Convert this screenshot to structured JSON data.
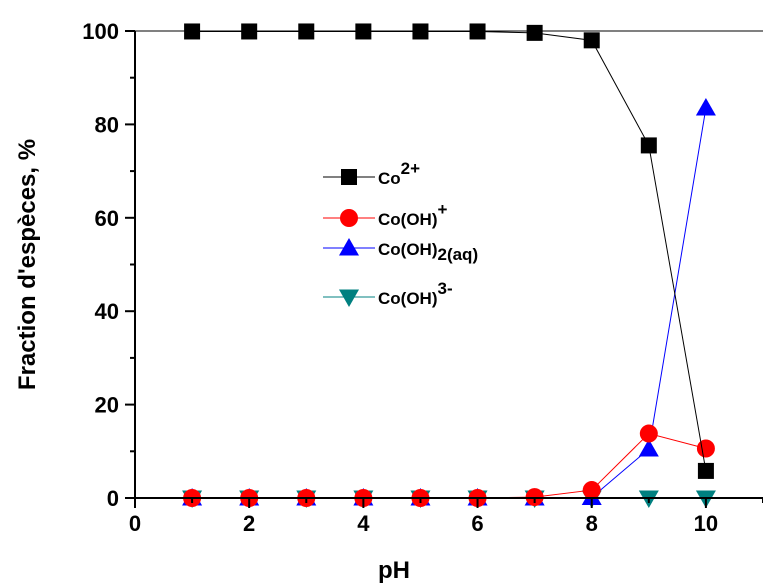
{
  "chart_data": {
    "type": "line",
    "xlabel": "pH",
    "ylabel": "Fraction d'espèces, %",
    "xlim": [
      0,
      11
    ],
    "ylim": [
      0,
      100
    ],
    "xticks": [
      0,
      2,
      4,
      6,
      8,
      10
    ],
    "yticks": [
      0,
      20,
      40,
      60,
      80,
      100
    ],
    "x_tick_labels": [
      "0",
      "2",
      "4",
      "6",
      "8",
      "10"
    ],
    "y_tick_labels": [
      "0",
      "20",
      "40",
      "60",
      "80",
      "100"
    ],
    "legend_position": "center-left",
    "grid": false,
    "x": [
      1,
      2,
      3,
      4,
      5,
      6,
      7,
      8,
      9,
      10
    ],
    "series": [
      {
        "name": "Co2+",
        "label_base": "Co",
        "label_super": "2+",
        "label_sub": "",
        "color": "#000000",
        "marker": "square",
        "values": [
          99.9,
          99.9,
          99.9,
          99.9,
          99.9,
          99.9,
          99.6,
          98.0,
          75.5,
          5.8
        ]
      },
      {
        "name": "Co(OH)+",
        "label_base": "Co(OH)",
        "label_super": "+",
        "label_sub": "",
        "color": "#ff0000",
        "marker": "circle",
        "values": [
          0,
          0,
          0,
          0,
          0,
          0,
          0.2,
          1.7,
          13.8,
          10.6
        ]
      },
      {
        "name": "Co(OH)2(aq)",
        "label_base": "Co(OH)",
        "label_super": "",
        "label_sub": "2(aq)",
        "color": "#0000ff",
        "marker": "triangle-up",
        "values": [
          0,
          0,
          0,
          0,
          0,
          0,
          0,
          0.1,
          10.5,
          83.5
        ]
      },
      {
        "name": "Co(OH)3-",
        "label_base": "Co(OH)",
        "label_super": "3-",
        "label_sub": "",
        "color": "#008080",
        "marker": "triangle-down",
        "values": [
          0,
          0,
          0,
          0,
          0,
          0,
          0,
          0,
          0,
          0
        ]
      }
    ]
  }
}
